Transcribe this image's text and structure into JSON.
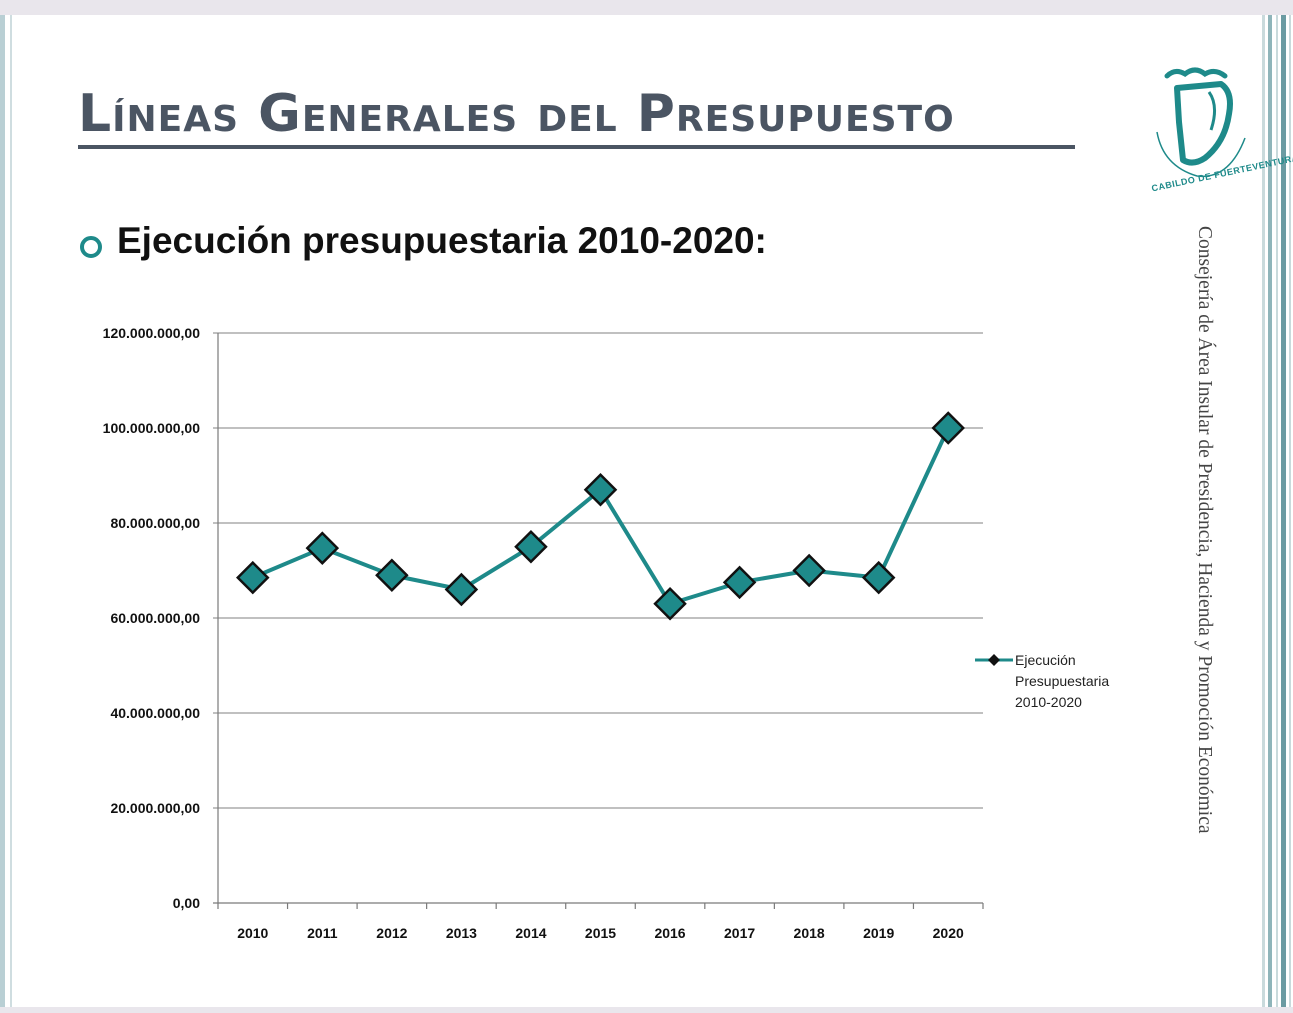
{
  "slide": {
    "title": "Líneas Generales del  Presupuesto",
    "subtitle": "Ejecución presupuestaria 2010-2020:",
    "side_text": "Consejería de Área Insular de Presidencia, Hacienda y Promoción Económica",
    "logo_text": "CABILDO DE FUERTEVENTURA"
  },
  "colors": {
    "accent": "#1e8a8a",
    "title": "#4b5563"
  },
  "chart_data": {
    "type": "line",
    "title": "",
    "xlabel": "",
    "ylabel": "",
    "categories": [
      "2010",
      "2011",
      "2012",
      "2013",
      "2014",
      "2015",
      "2016",
      "2017",
      "2018",
      "2019",
      "2020"
    ],
    "series": [
      {
        "name": "Ejecución Presupuestaria 2010-2020",
        "legend_lines": [
          "Ejecución",
          "Presupuestaria",
          "2010-2020"
        ],
        "values": [
          68500000,
          74700000,
          69000000,
          66000000,
          75000000,
          87000000,
          63000000,
          67500000,
          70000000,
          68500000,
          100000000
        ]
      }
    ],
    "ylim": [
      0,
      120000000
    ],
    "yticks": [
      0,
      20000000,
      40000000,
      60000000,
      80000000,
      100000000,
      120000000
    ],
    "ytick_labels": [
      "0,00",
      "20.000.000,00",
      "40.000.000,00",
      "60.000.000,00",
      "80.000.000,00",
      "100.000.000,00",
      "120.000.000,00"
    ],
    "grid": true,
    "legend_position": "right"
  }
}
